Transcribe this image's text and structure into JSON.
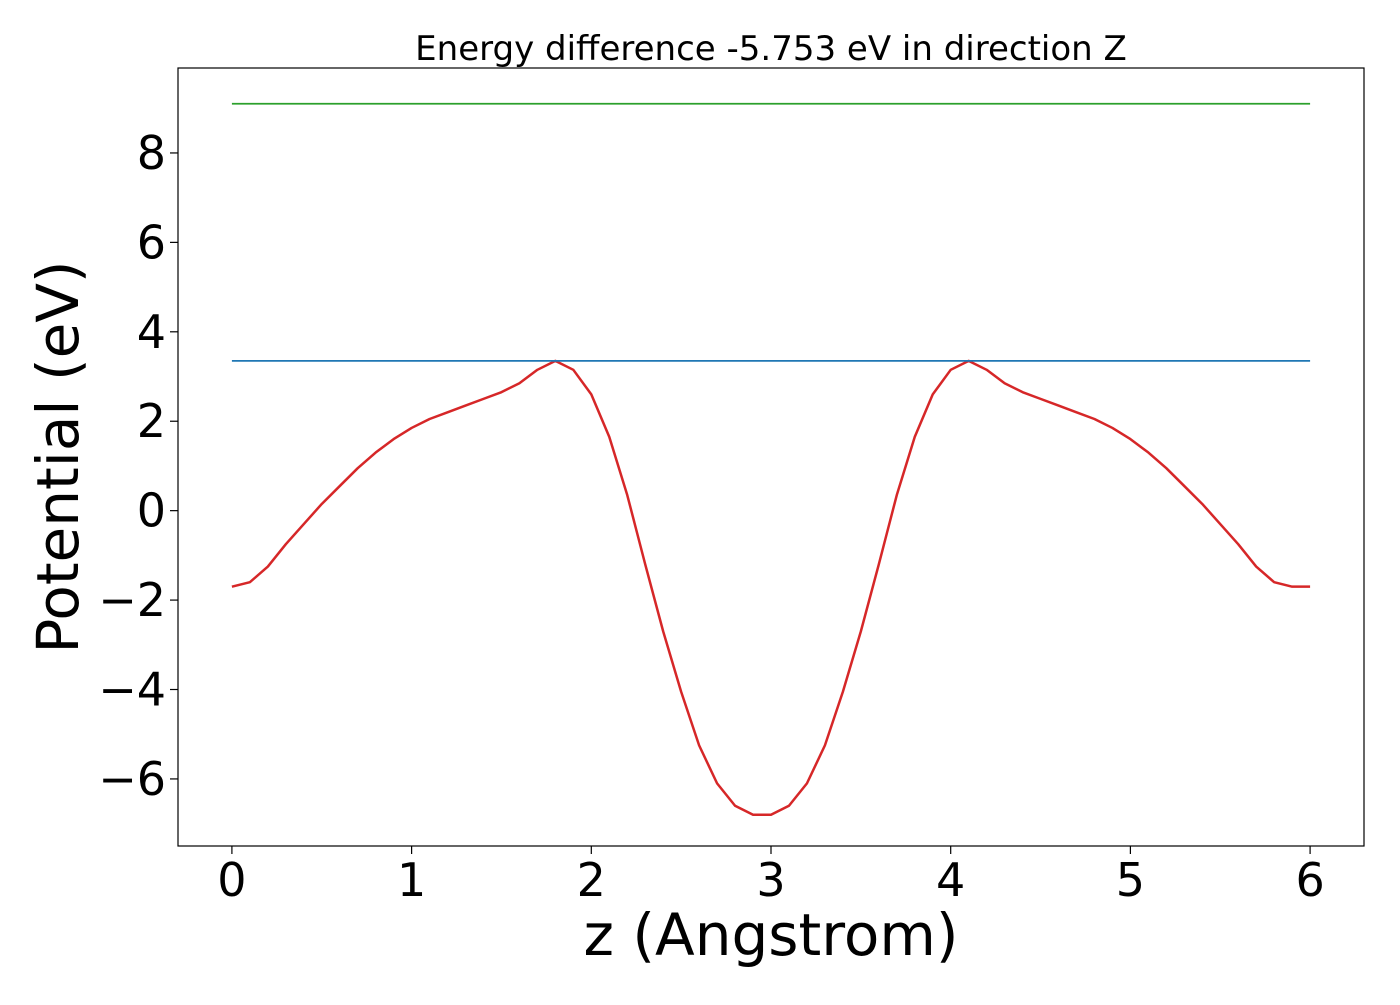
{
  "chart_data": {
    "type": "line",
    "title": "Energy difference -5.753 eV in direction Z",
    "xlabel": "z (Angstrom)",
    "ylabel": "Potential (eV)",
    "xlim": [
      -0.3,
      6.3
    ],
    "ylim": [
      -7.5,
      9.9
    ],
    "xticks": [
      0,
      1,
      2,
      3,
      4,
      5,
      6
    ],
    "xtick_labels": [
      "0",
      "1",
      "2",
      "3",
      "4",
      "5",
      "6"
    ],
    "yticks": [
      -6,
      -4,
      -2,
      0,
      2,
      4,
      6,
      8
    ],
    "ytick_labels": [
      "−6",
      "−4",
      "−2",
      "0",
      "2",
      "4",
      "6",
      "8"
    ],
    "grid": false,
    "series": [
      {
        "color": "#d62728",
        "x": [
          0,
          0.1,
          0.2,
          0.3,
          0.4,
          0.5,
          0.6,
          0.7,
          0.8,
          0.9,
          1.0,
          1.1,
          1.2,
          1.3,
          1.4,
          1.5,
          1.6,
          1.7,
          1.8,
          1.9,
          2.0,
          2.1,
          2.2,
          2.3,
          2.4,
          2.5,
          2.6,
          2.7,
          2.8,
          2.9,
          3.0,
          3.1,
          3.2,
          3.3,
          3.4,
          3.5,
          3.6,
          3.7,
          3.8,
          3.9,
          4.0,
          4.1,
          4.2,
          4.3,
          4.4,
          4.5,
          4.6,
          4.7,
          4.8,
          4.9,
          5.0,
          5.1,
          5.2,
          5.3,
          5.4,
          5.5,
          5.6,
          5.7,
          5.8,
          5.9,
          6.0
        ],
        "y": [
          -1.7,
          -1.6,
          -1.25,
          -0.75,
          -0.3,
          0.15,
          0.55,
          0.95,
          1.3,
          1.6,
          1.85,
          2.05,
          2.2,
          2.35,
          2.5,
          2.65,
          2.85,
          3.15,
          3.35,
          3.15,
          2.6,
          1.65,
          0.35,
          -1.2,
          -2.7,
          -4.05,
          -5.25,
          -6.1,
          -6.6,
          -6.8,
          -6.8,
          -6.6,
          -6.1,
          -5.25,
          -4.05,
          -2.7,
          -1.2,
          0.35,
          1.65,
          2.6,
          3.15,
          3.35,
          3.15,
          2.85,
          2.65,
          2.5,
          2.35,
          2.2,
          2.05,
          1.85,
          1.6,
          1.3,
          0.95,
          0.55,
          0.15,
          -0.3,
          -0.75,
          -1.25,
          -1.6,
          -1.7,
          -1.7
        ]
      },
      {
        "color": "#1f77b4",
        "x": [
          0,
          6
        ],
        "y": [
          3.35,
          3.35
        ]
      },
      {
        "color": "#2ca02c",
        "x": [
          0,
          6
        ],
        "y": [
          9.1,
          9.1
        ]
      }
    ]
  }
}
